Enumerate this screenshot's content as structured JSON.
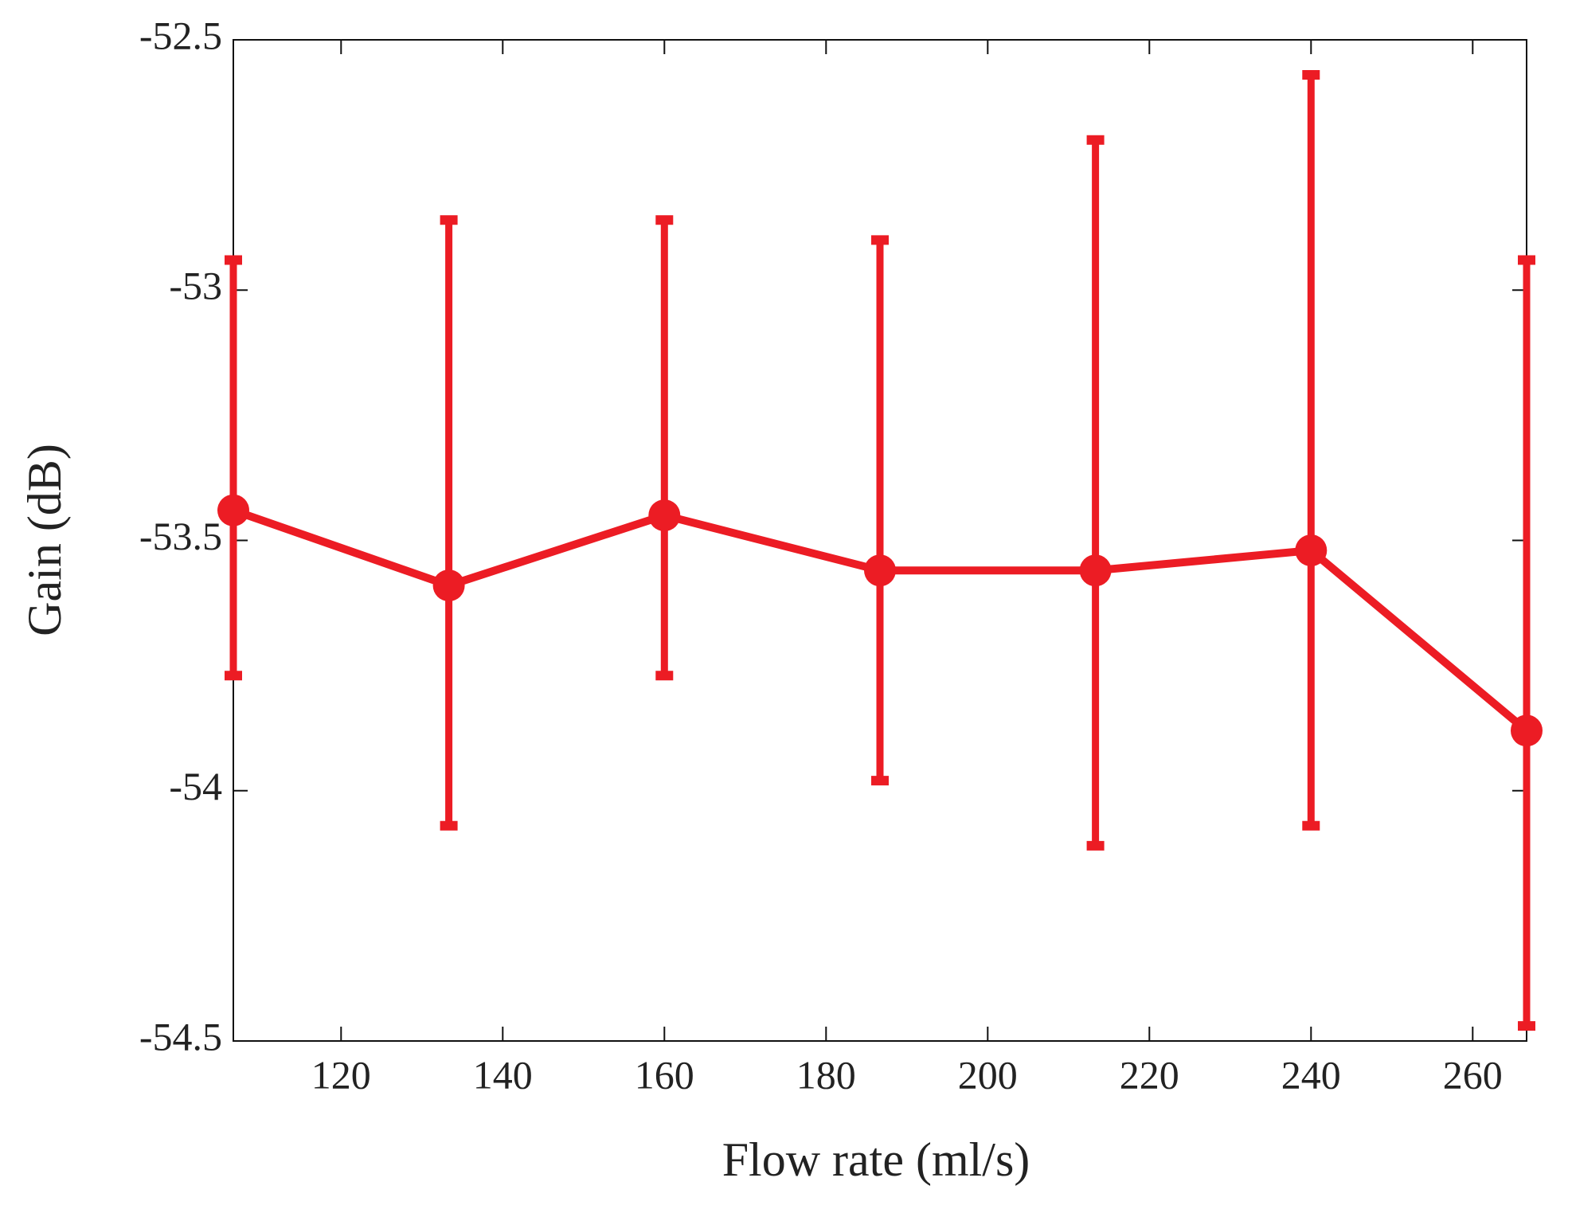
{
  "chart_data": {
    "type": "errorbar",
    "x_label": "Flow rate (ml/s)",
    "y_label": "Gain (dB)",
    "x": [
      106.67,
      133.33,
      160,
      186.67,
      213.33,
      240,
      266.67
    ],
    "series": [
      {
        "color": "#ec1c24",
        "values": [
          -53.44,
          -53.59,
          -53.45,
          -53.56,
          -53.56,
          -53.52,
          -53.88
        ],
        "lower": [
          -53.77,
          -54.07,
          -53.77,
          -53.98,
          -54.11,
          -54.07,
          -54.47
        ],
        "upper": [
          -52.94,
          -52.86,
          -52.86,
          -52.9,
          -52.7,
          -52.57,
          -52.94
        ]
      }
    ],
    "xlim": [
      106.67,
      266.67
    ],
    "xticks": [
      120,
      140,
      160,
      180,
      200,
      220,
      240,
      260
    ],
    "ylim": [
      -54.5,
      -52.5
    ],
    "yticks": [
      -52.5,
      -53,
      -53.5,
      -54,
      -54.5
    ],
    "grid": false
  }
}
